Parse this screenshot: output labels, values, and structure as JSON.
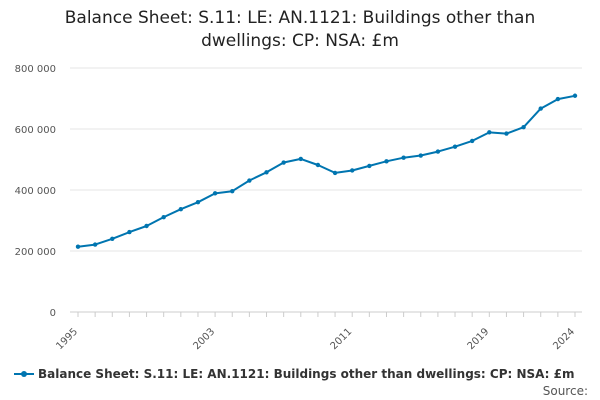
{
  "chart_data": {
    "type": "line",
    "title_lines": [
      "Balance Sheet: S.11: LE: AN.1121: Buildings other than",
      "dwellings: CP: NSA: £m"
    ],
    "xlabel": "",
    "ylabel": "",
    "x": [
      1995,
      1996,
      1997,
      1998,
      1999,
      2000,
      2001,
      2002,
      2003,
      2004,
      2005,
      2006,
      2007,
      2008,
      2009,
      2010,
      2011,
      2012,
      2013,
      2014,
      2015,
      2016,
      2017,
      2018,
      2019,
      2020,
      2021,
      2022,
      2023,
      2024
    ],
    "series": [
      {
        "name": "Balance Sheet: S.11: LE: AN.1121: Buildings other than dwellings: CP: NSA: £m",
        "color": "#0075b0",
        "values": [
          214000,
          221000,
          240000,
          262000,
          282000,
          311000,
          337000,
          360000,
          389000,
          396000,
          431000,
          458000,
          490000,
          502000,
          482000,
          456000,
          464000,
          479000,
          494000,
          506000,
          513000,
          526000,
          542000,
          561000,
          589000,
          585000,
          606000,
          667000,
          698000,
          709000
        ]
      }
    ],
    "ylim": [
      0,
      800000
    ],
    "xlim": [
      1995,
      2024
    ],
    "yticks": [
      0,
      200000,
      400000,
      600000,
      800000
    ],
    "ytick_labels": [
      "0",
      "200 000",
      "400 000",
      "600 000",
      "800 000"
    ],
    "xticks": [
      1995,
      2003,
      2011,
      2019,
      2024
    ],
    "xtick_labels": [
      "1995",
      "2003",
      "2011",
      "2019",
      "2024"
    ],
    "grid": true,
    "legend_position": "bottom",
    "source_label": "Source:"
  }
}
